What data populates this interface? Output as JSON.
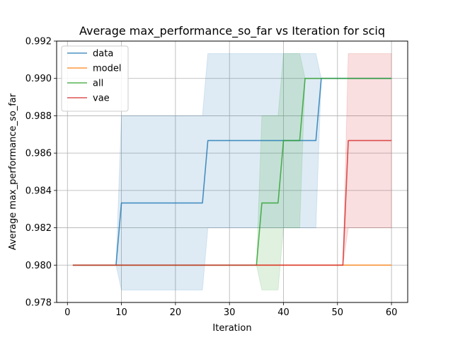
{
  "chart_data": {
    "type": "line",
    "title": "Average max_performance_so_far vs Iteration for sciq",
    "xlabel": "Iteration",
    "ylabel": "Average max_performance_so_far",
    "xlim": [
      -2,
      63
    ],
    "ylim": [
      0.978,
      0.992
    ],
    "xticks": [
      0,
      10,
      20,
      30,
      40,
      50,
      60
    ],
    "yticks": [
      0.978,
      0.98,
      0.982,
      0.984,
      0.986,
      0.988,
      0.99,
      0.992
    ],
    "grid": true,
    "legend_position": "top-left",
    "series": [
      {
        "name": "data",
        "color": "#1f77b4",
        "points": [
          [
            1,
            0.98
          ],
          [
            9,
            0.98
          ],
          [
            10,
            0.98333
          ],
          [
            25,
            0.98333
          ],
          [
            26,
            0.98667
          ],
          [
            46,
            0.98667
          ],
          [
            47,
            0.99
          ],
          [
            60,
            0.99
          ]
        ],
        "band": [
          [
            1,
            0.98,
            0.98
          ],
          [
            9,
            0.98,
            0.98
          ],
          [
            10,
            0.97867,
            0.988
          ],
          [
            25,
            0.97867,
            0.988
          ],
          [
            26,
            0.982,
            0.99133
          ],
          [
            46,
            0.982,
            0.99133
          ],
          [
            47,
            0.99,
            0.99
          ],
          [
            60,
            0.99,
            0.99
          ]
        ]
      },
      {
        "name": "model",
        "color": "#ff7f0e",
        "points": [
          [
            1,
            0.98
          ],
          [
            60,
            0.98
          ]
        ],
        "band": []
      },
      {
        "name": "all",
        "color": "#2ca02c",
        "points": [
          [
            1,
            0.98
          ],
          [
            35,
            0.98
          ],
          [
            36,
            0.98333
          ],
          [
            39,
            0.98333
          ],
          [
            40,
            0.98667
          ],
          [
            43,
            0.98667
          ],
          [
            44,
            0.99
          ],
          [
            60,
            0.99
          ]
        ],
        "band": [
          [
            1,
            0.98,
            0.98
          ],
          [
            35,
            0.98,
            0.98
          ],
          [
            36,
            0.97867,
            0.988
          ],
          [
            39,
            0.97867,
            0.988
          ],
          [
            40,
            0.982,
            0.99133
          ],
          [
            43,
            0.982,
            0.99133
          ],
          [
            44,
            0.99,
            0.99
          ],
          [
            60,
            0.99,
            0.99
          ]
        ]
      },
      {
        "name": "vae",
        "color": "#d62728",
        "points": [
          [
            1,
            0.98
          ],
          [
            51,
            0.98
          ],
          [
            52,
            0.98667
          ],
          [
            60,
            0.98667
          ]
        ],
        "band": [
          [
            1,
            0.98,
            0.98
          ],
          [
            51,
            0.98,
            0.98
          ],
          [
            52,
            0.982,
            0.99133
          ],
          [
            60,
            0.982,
            0.99133
          ]
        ]
      }
    ]
  }
}
